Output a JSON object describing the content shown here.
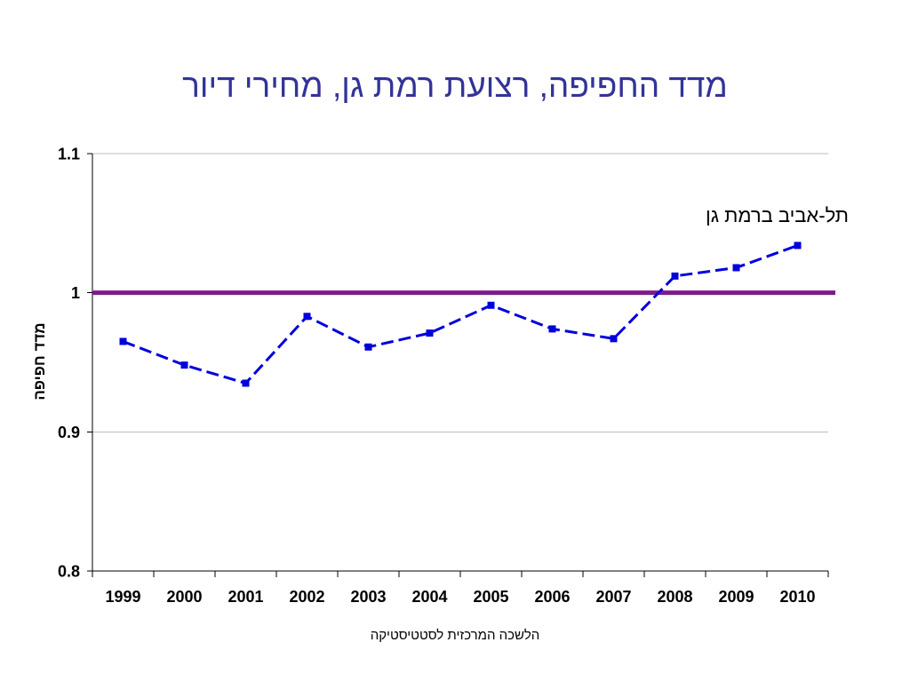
{
  "colors": {
    "title": "#333399",
    "series": "#0000dd",
    "reference_line": "#7f1a8c",
    "grid": "#bdbdbd",
    "axis": "#000000",
    "text": "#000000"
  },
  "footer_text": "הלשכה המרכזית לסטטיסטיקה",
  "chart_data": {
    "type": "line",
    "title": "מדד החפיפה, רצועת רמת גן, מחירי דיור",
    "ylabel": "מדד חפיפה",
    "categories": [
      "1999",
      "2000",
      "2001",
      "2002",
      "2003",
      "2004",
      "2005",
      "2006",
      "2007",
      "2008",
      "2009",
      "2010"
    ],
    "series": [
      {
        "name": "תל-אביב ברמת גן",
        "values": [
          0.965,
          0.948,
          0.935,
          0.983,
          0.961,
          0.971,
          0.991,
          0.974,
          0.967,
          1.012,
          1.018,
          1.034
        ]
      }
    ],
    "reference_line": {
      "value": 1
    },
    "ylim": [
      0.8,
      1.1
    ],
    "yticks": [
      0.8,
      0.9,
      1,
      1.1
    ],
    "ytick_labels": [
      "0.8",
      "0.9",
      "1",
      "1.1"
    ],
    "grid": {
      "horizontal": true,
      "vertical": false
    }
  }
}
